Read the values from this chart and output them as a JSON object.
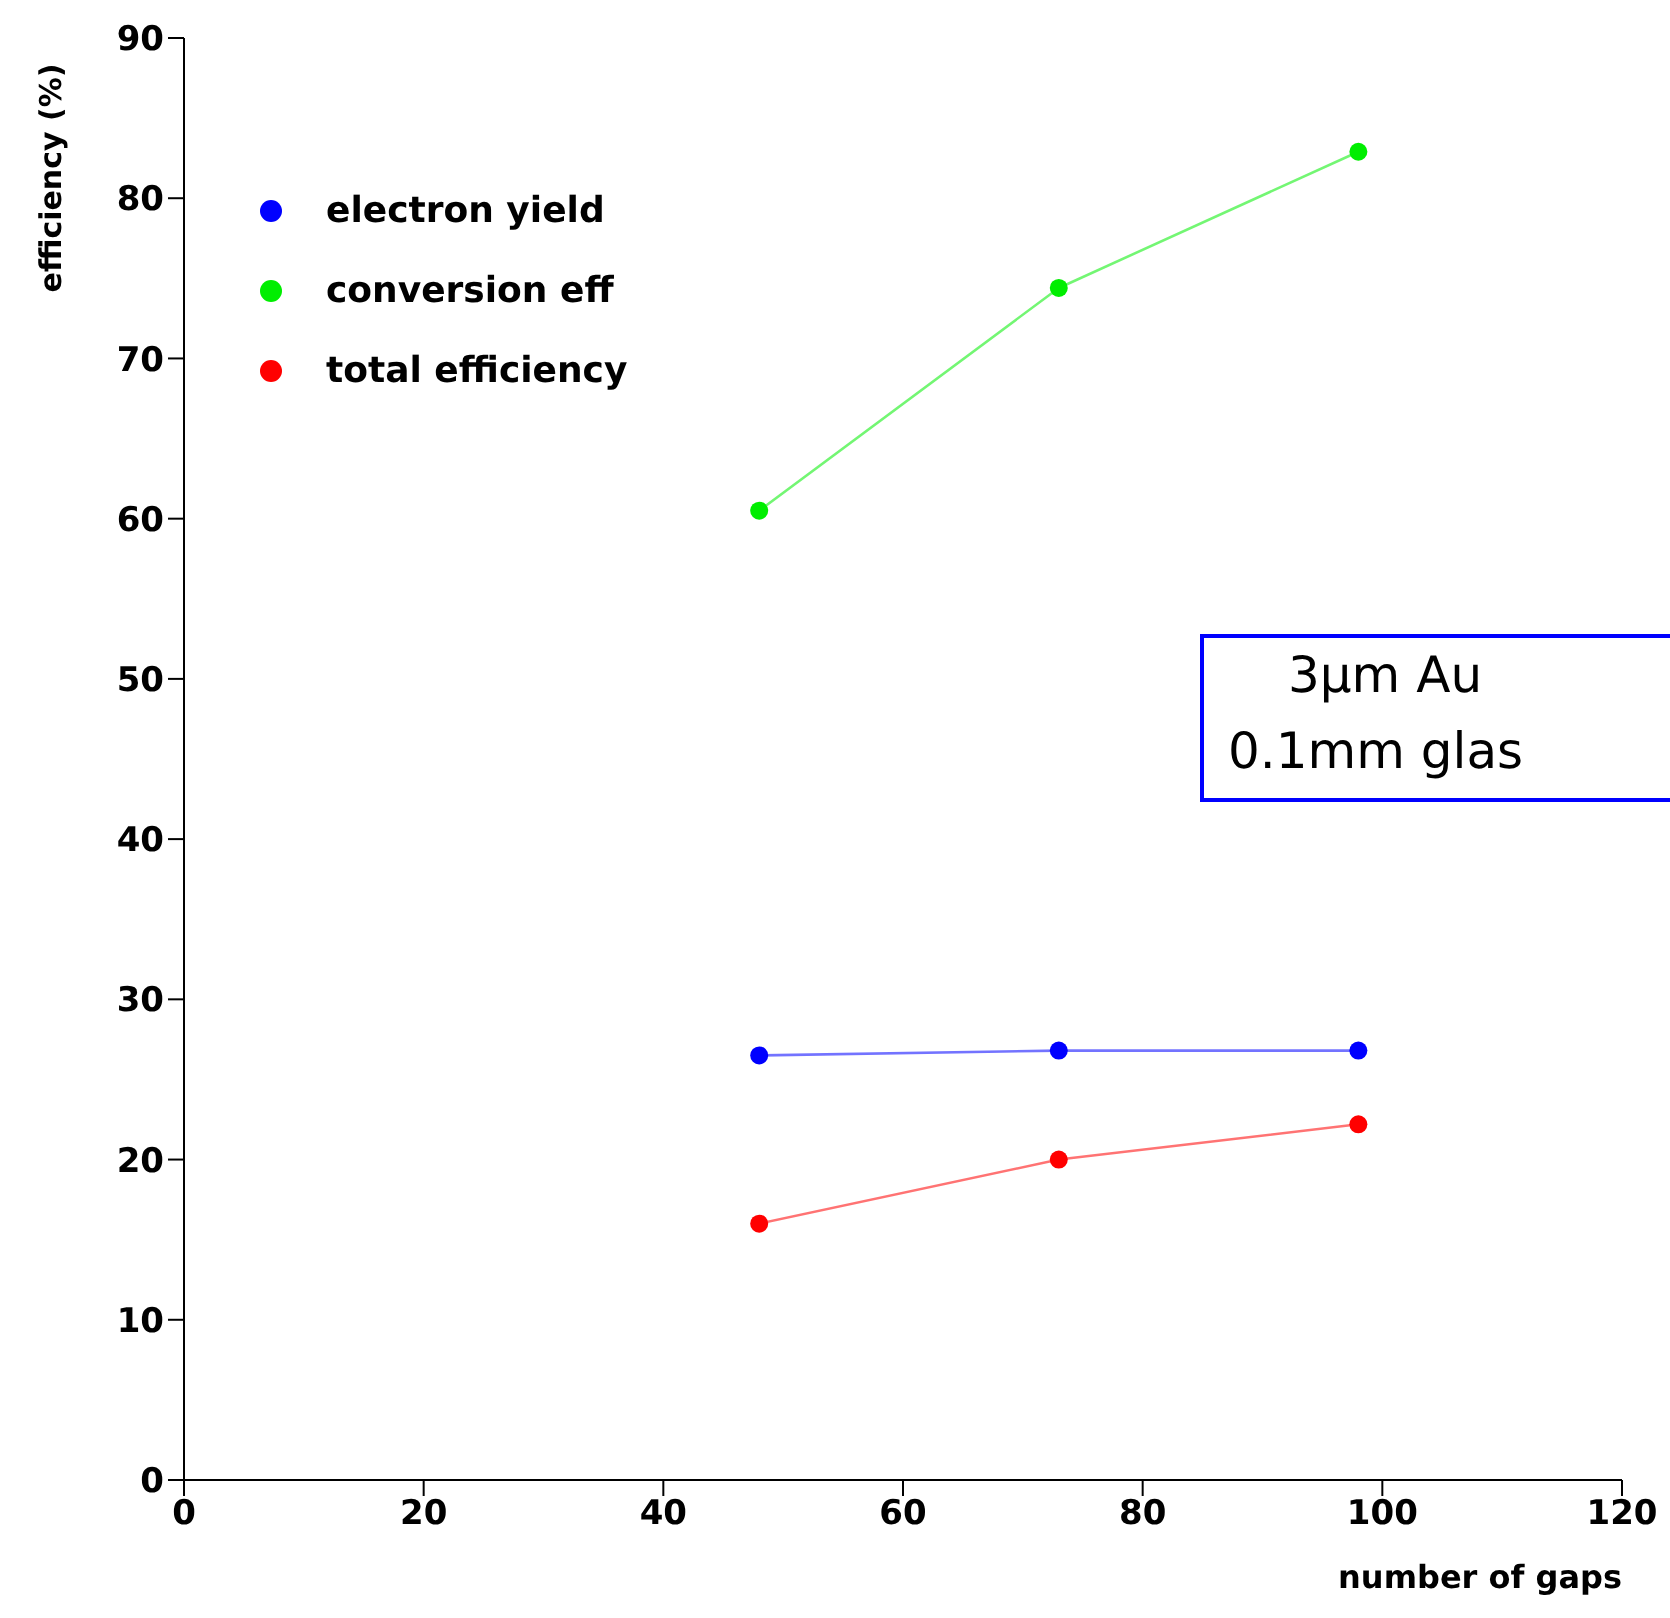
{
  "chart_data": {
    "type": "line",
    "xlabel": "number of gaps",
    "ylabel": "efficiency (%)",
    "x": [
      48,
      73,
      98
    ],
    "series": [
      {
        "name": "electron yield",
        "color": "#0000ff",
        "values": [
          26.5,
          26.8,
          26.8
        ]
      },
      {
        "name": "conversion eff",
        "color": "#00ee00",
        "values": [
          60.5,
          74.4,
          82.9
        ]
      },
      {
        "name": "total efficiency",
        "color": "#ff0000",
        "values": [
          16.0,
          20.0,
          22.2
        ]
      }
    ],
    "xlim": [
      0,
      120
    ],
    "xticks": [
      0,
      20,
      40,
      60,
      80,
      100,
      120
    ],
    "ylim": [
      0,
      90
    ],
    "yticks": [
      0,
      10,
      20,
      30,
      40,
      50,
      60,
      70,
      80,
      90
    ],
    "grid": false,
    "legend": "top left",
    "marker": "circle",
    "line_style": "solid",
    "annotations": [
      "3µm Au",
      "0.1mm glas"
    ]
  }
}
